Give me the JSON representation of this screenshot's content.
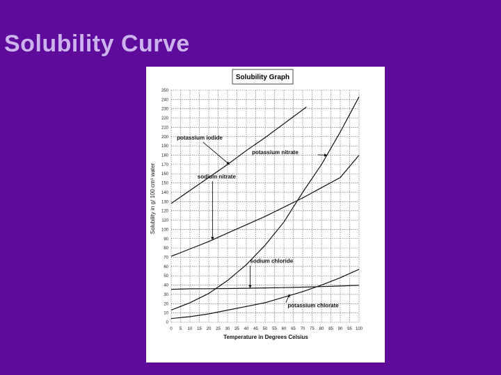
{
  "slide": {
    "title": "Solubility Curve"
  },
  "colors": {
    "background": "#5e0a9b",
    "title": "#cdb3ee",
    "chart_bg": "#ffffff",
    "ink": "#111111"
  },
  "chart_data": {
    "type": "line",
    "title": "Solubility Graph",
    "xlabel": "Temperature in Degrees Celsius",
    "ylabel": "Solubility in g/ 100 cm³ water",
    "xlim": [
      0,
      100
    ],
    "ylim": [
      0,
      250
    ],
    "xticks": [
      0,
      5,
      10,
      15,
      20,
      25,
      30,
      35,
      40,
      45,
      50,
      55,
      60,
      65,
      70,
      75,
      80,
      85,
      90,
      95,
      100
    ],
    "yticks": [
      0,
      10,
      20,
      30,
      40,
      50,
      60,
      70,
      80,
      90,
      100,
      110,
      120,
      130,
      140,
      150,
      160,
      170,
      180,
      190,
      200,
      210,
      220,
      230,
      240,
      250
    ],
    "grid": true,
    "series": [
      {
        "name": "potassium iodide",
        "x": [
          0,
          10,
          20,
          30,
          40,
          50,
          60,
          70,
          72
        ],
        "y": [
          128,
          142,
          156,
          170,
          185,
          199,
          214,
          229,
          232
        ]
      },
      {
        "name": "potassium nitrate",
        "x": [
          0,
          10,
          20,
          30,
          40,
          50,
          60,
          70,
          80,
          90,
          100
        ],
        "y": [
          13,
          21,
          31,
          45,
          62,
          83,
          108,
          140,
          170,
          205,
          243
        ]
      },
      {
        "name": "sodium nitrate",
        "x": [
          0,
          10,
          20,
          30,
          40,
          50,
          60,
          70,
          80,
          90,
          100
        ],
        "y": [
          71,
          79,
          87,
          96,
          105,
          114,
          124,
          134,
          145,
          156,
          180
        ]
      },
      {
        "name": "sodium chloride",
        "x": [
          0,
          10,
          20,
          30,
          40,
          50,
          60,
          70,
          80,
          90,
          100
        ],
        "y": [
          35.5,
          36,
          36.1,
          36.3,
          36.6,
          37,
          37.3,
          37.8,
          38.4,
          39,
          39.8
        ]
      },
      {
        "name": "potassium chlorate",
        "x": [
          0,
          10,
          20,
          30,
          40,
          50,
          60,
          70,
          80,
          90,
          100
        ],
        "y": [
          4,
          6,
          9,
          13,
          17,
          21,
          27,
          33,
          40,
          48,
          57
        ]
      }
    ],
    "annotations": [
      "potassium iodide",
      "potassium nitrate",
      "sodium nitrate",
      "sodium chloride",
      "potassium chlorate"
    ]
  }
}
